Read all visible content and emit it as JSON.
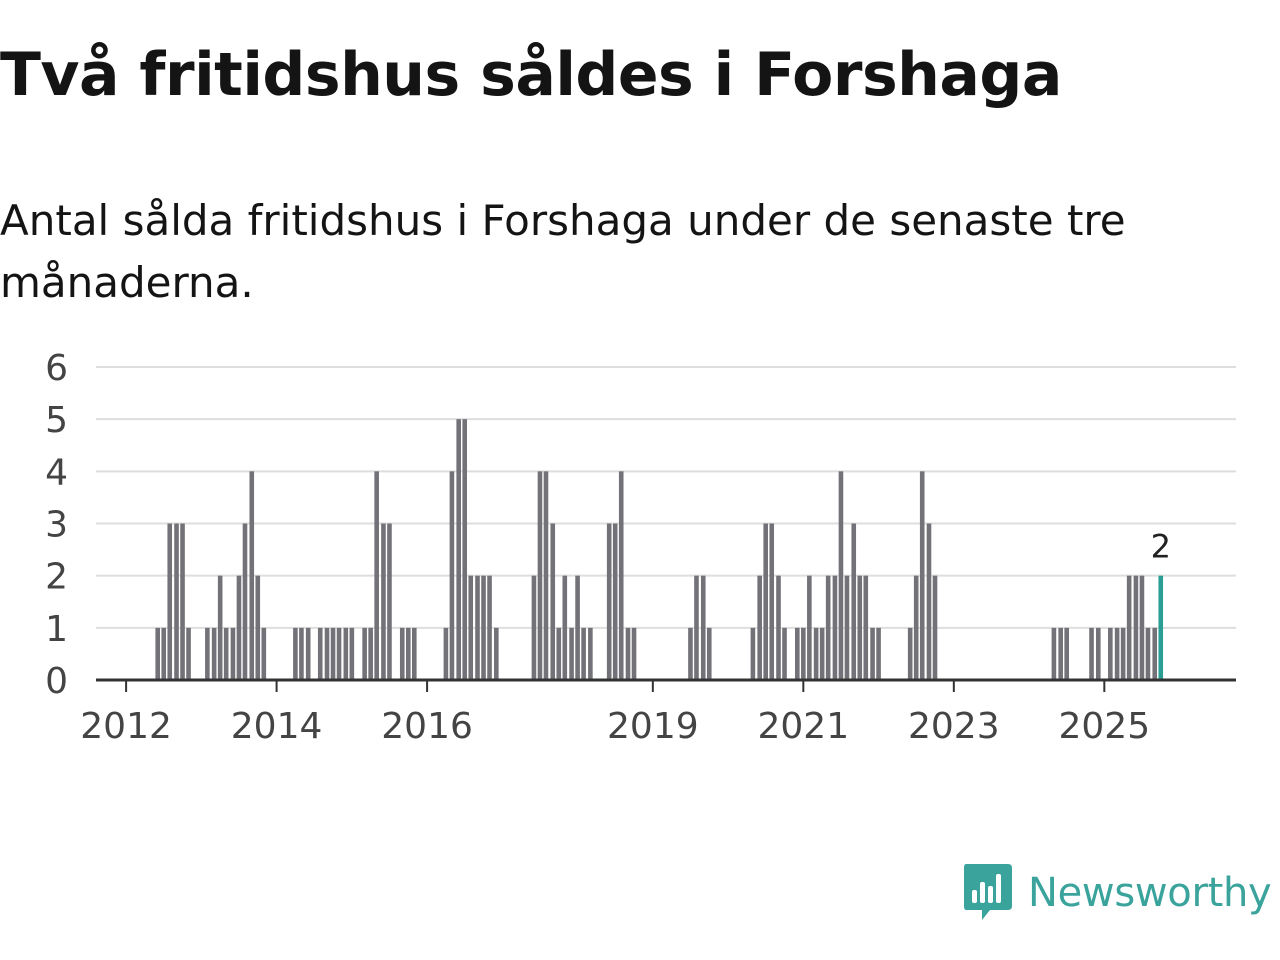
{
  "title": "Två fritidshus såldes i Forshaga",
  "subtitle": "Antal sålda fritidshus i Forshaga under de senaste tre månaderna.",
  "brand": {
    "name": "Newsworthy",
    "color": "#3aa39c"
  },
  "colors": {
    "bar": "#737278",
    "highlight": "#2a9d94",
    "grid": "#dedede",
    "axis": "#333333",
    "tick": "#444444"
  },
  "chart_data": {
    "type": "bar",
    "ylim": [
      0,
      6
    ],
    "yticks": [
      "0",
      "1",
      "2",
      "3",
      "4",
      "5",
      "6"
    ],
    "xlim": [
      2011.6,
      2026.75
    ],
    "xticks": [
      {
        "label": "2012",
        "value": 2012
      },
      {
        "label": "2014",
        "value": 2014
      },
      {
        "label": "2016",
        "value": 2016
      },
      {
        "label": "2019",
        "value": 2019
      },
      {
        "label": "2021",
        "value": 2021
      },
      {
        "label": "2023",
        "value": 2023
      },
      {
        "label": "2025",
        "value": 2025
      }
    ],
    "annotation": "2",
    "series": [
      {
        "x": 2012.42,
        "v": 1
      },
      {
        "x": 2012.5,
        "v": 1
      },
      {
        "x": 2012.58,
        "v": 3
      },
      {
        "x": 2012.67,
        "v": 3
      },
      {
        "x": 2012.75,
        "v": 3
      },
      {
        "x": 2012.83,
        "v": 1
      },
      {
        "x": 2013.08,
        "v": 1
      },
      {
        "x": 2013.17,
        "v": 1
      },
      {
        "x": 2013.25,
        "v": 2
      },
      {
        "x": 2013.33,
        "v": 1
      },
      {
        "x": 2013.42,
        "v": 1
      },
      {
        "x": 2013.5,
        "v": 2
      },
      {
        "x": 2013.58,
        "v": 3
      },
      {
        "x": 2013.67,
        "v": 4
      },
      {
        "x": 2013.75,
        "v": 2
      },
      {
        "x": 2013.83,
        "v": 1
      },
      {
        "x": 2014.25,
        "v": 1
      },
      {
        "x": 2014.33,
        "v": 1
      },
      {
        "x": 2014.42,
        "v": 1
      },
      {
        "x": 2014.58,
        "v": 1
      },
      {
        "x": 2014.67,
        "v": 1
      },
      {
        "x": 2014.75,
        "v": 1
      },
      {
        "x": 2014.83,
        "v": 1
      },
      {
        "x": 2014.92,
        "v": 1
      },
      {
        "x": 2015.0,
        "v": 1
      },
      {
        "x": 2015.17,
        "v": 1
      },
      {
        "x": 2015.25,
        "v": 1
      },
      {
        "x": 2015.33,
        "v": 4
      },
      {
        "x": 2015.42,
        "v": 3
      },
      {
        "x": 2015.5,
        "v": 3
      },
      {
        "x": 2015.67,
        "v": 1
      },
      {
        "x": 2015.75,
        "v": 1
      },
      {
        "x": 2015.83,
        "v": 1
      },
      {
        "x": 2016.25,
        "v": 1
      },
      {
        "x": 2016.33,
        "v": 4
      },
      {
        "x": 2016.42,
        "v": 5
      },
      {
        "x": 2016.5,
        "v": 5
      },
      {
        "x": 2016.58,
        "v": 2
      },
      {
        "x": 2016.67,
        "v": 2
      },
      {
        "x": 2016.75,
        "v": 2
      },
      {
        "x": 2016.83,
        "v": 2
      },
      {
        "x": 2016.92,
        "v": 1
      },
      {
        "x": 2017.42,
        "v": 2
      },
      {
        "x": 2017.5,
        "v": 4
      },
      {
        "x": 2017.58,
        "v": 4
      },
      {
        "x": 2017.67,
        "v": 3
      },
      {
        "x": 2017.75,
        "v": 1
      },
      {
        "x": 2017.83,
        "v": 2
      },
      {
        "x": 2017.92,
        "v": 1
      },
      {
        "x": 2018.0,
        "v": 2
      },
      {
        "x": 2018.08,
        "v": 1
      },
      {
        "x": 2018.17,
        "v": 1
      },
      {
        "x": 2018.42,
        "v": 3
      },
      {
        "x": 2018.5,
        "v": 3
      },
      {
        "x": 2018.58,
        "v": 4
      },
      {
        "x": 2018.67,
        "v": 1
      },
      {
        "x": 2018.75,
        "v": 1
      },
      {
        "x": 2019.5,
        "v": 1
      },
      {
        "x": 2019.58,
        "v": 2
      },
      {
        "x": 2019.67,
        "v": 2
      },
      {
        "x": 2019.75,
        "v": 1
      },
      {
        "x": 2020.33,
        "v": 1
      },
      {
        "x": 2020.42,
        "v": 2
      },
      {
        "x": 2020.5,
        "v": 3
      },
      {
        "x": 2020.58,
        "v": 3
      },
      {
        "x": 2020.67,
        "v": 2
      },
      {
        "x": 2020.75,
        "v": 1
      },
      {
        "x": 2020.92,
        "v": 1
      },
      {
        "x": 2021.0,
        "v": 1
      },
      {
        "x": 2021.08,
        "v": 2
      },
      {
        "x": 2021.17,
        "v": 1
      },
      {
        "x": 2021.25,
        "v": 1
      },
      {
        "x": 2021.33,
        "v": 2
      },
      {
        "x": 2021.42,
        "v": 2
      },
      {
        "x": 2021.5,
        "v": 4
      },
      {
        "x": 2021.58,
        "v": 2
      },
      {
        "x": 2021.67,
        "v": 3
      },
      {
        "x": 2021.75,
        "v": 2
      },
      {
        "x": 2021.83,
        "v": 2
      },
      {
        "x": 2021.92,
        "v": 1
      },
      {
        "x": 2022.0,
        "v": 1
      },
      {
        "x": 2022.42,
        "v": 1
      },
      {
        "x": 2022.5,
        "v": 2
      },
      {
        "x": 2022.58,
        "v": 4
      },
      {
        "x": 2022.67,
        "v": 3
      },
      {
        "x": 2022.75,
        "v": 2
      },
      {
        "x": 2024.33,
        "v": 1
      },
      {
        "x": 2024.42,
        "v": 1
      },
      {
        "x": 2024.5,
        "v": 1
      },
      {
        "x": 2024.83,
        "v": 1
      },
      {
        "x": 2024.92,
        "v": 1
      },
      {
        "x": 2025.08,
        "v": 1
      },
      {
        "x": 2025.17,
        "v": 1
      },
      {
        "x": 2025.25,
        "v": 1
      },
      {
        "x": 2025.33,
        "v": 2
      },
      {
        "x": 2025.42,
        "v": 2
      },
      {
        "x": 2025.5,
        "v": 2
      },
      {
        "x": 2025.58,
        "v": 1
      },
      {
        "x": 2025.67,
        "v": 1
      },
      {
        "x": 2025.75,
        "v": 2
      }
    ]
  }
}
